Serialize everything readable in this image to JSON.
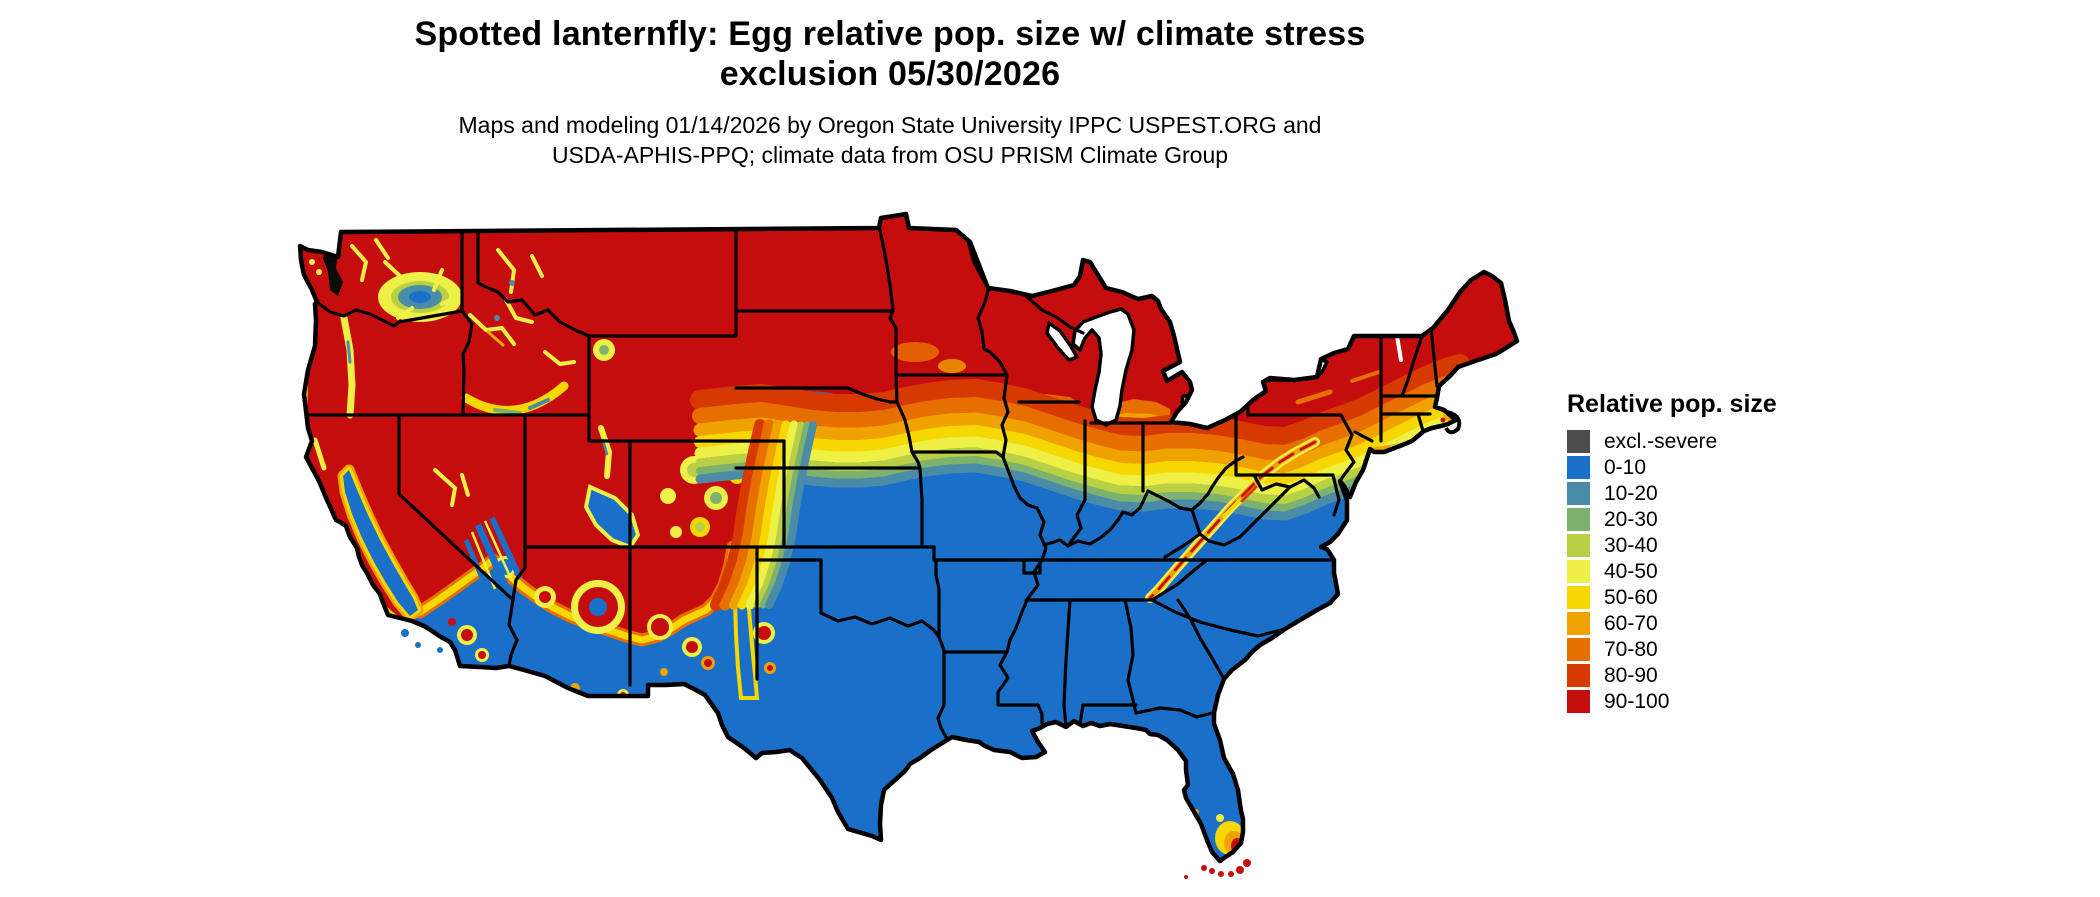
{
  "title": {
    "line1": "Spotted lanternfly: Egg relative pop. size w/ climate stress",
    "line2": "exclusion 05/30/2026"
  },
  "subtitle": {
    "line1": "Maps and modeling 01/14/2026 by Oregon State University IPPC USPEST.ORG and",
    "line2": "USDA-APHIS-PPQ; climate data from OSU PRISM Climate Group"
  },
  "legend": {
    "title": "Relative pop. size",
    "items": [
      {
        "label": "excl.-severe",
        "color": "#4d4d4d"
      },
      {
        "label": "0-10",
        "color": "#1a70c8"
      },
      {
        "label": "10-20",
        "color": "#4a8ca8"
      },
      {
        "label": "20-30",
        "color": "#7db26e"
      },
      {
        "label": "30-40",
        "color": "#b9cf44"
      },
      {
        "label": "40-50",
        "color": "#eef046"
      },
      {
        "label": "50-60",
        "color": "#f6d800"
      },
      {
        "label": "60-70",
        "color": "#f0a300"
      },
      {
        "label": "70-80",
        "color": "#e76f00"
      },
      {
        "label": "80-90",
        "color": "#d63a00"
      },
      {
        "label": "90-100",
        "color": "#c50d0d"
      }
    ]
  },
  "map": {
    "type": "choropleth",
    "region": "Contiguous United States",
    "value_name": "Relative pop. size",
    "pattern": "High (90-100, red) across the northern states and western mountains; banded transition (orange-yellow-green-teal) through Nebraska, Iowa, Illinois, Ohio and Pennsylvania; low (0-10, blue) across the South, California Central Valley and southwest deserts; hotspot at the southern tip of Florida"
  }
}
